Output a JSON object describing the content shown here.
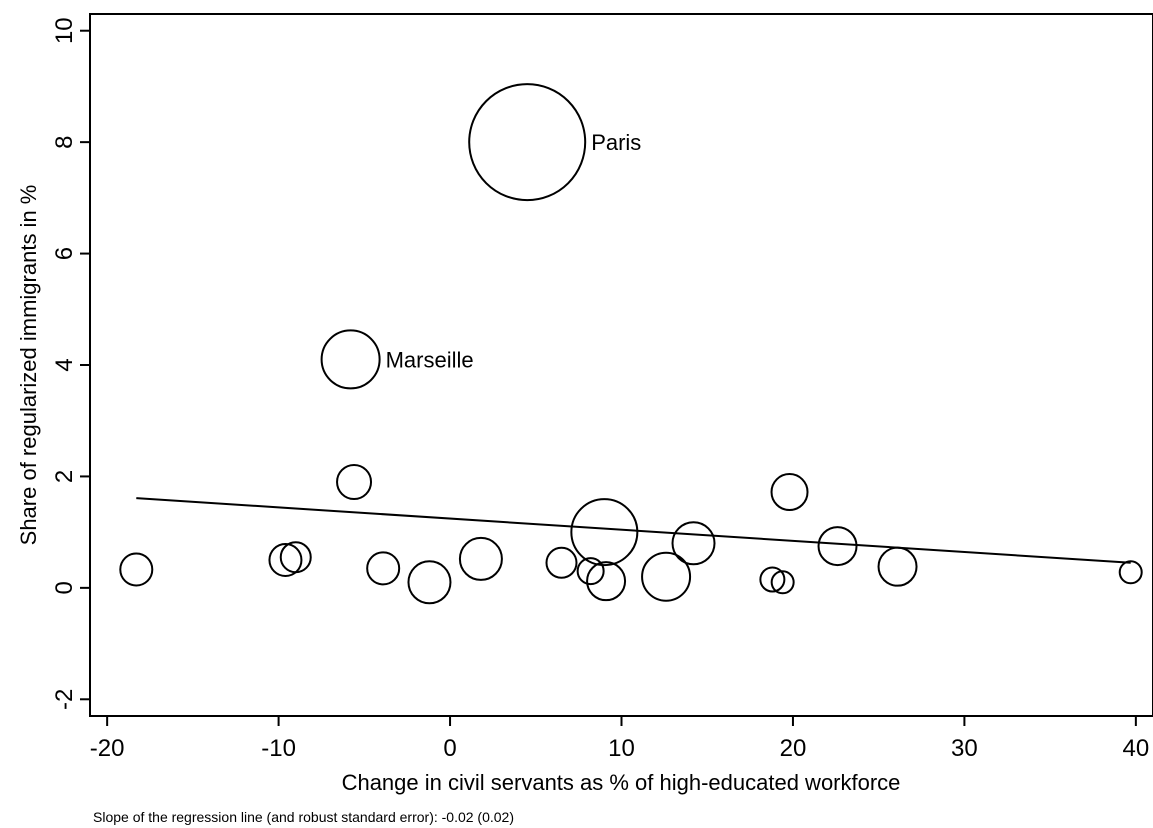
{
  "chart_data": {
    "type": "scatter",
    "title": "",
    "xlabel": "Change in civil servants as % of high-educated workforce",
    "ylabel": "Share of regularized immigrants in %",
    "xlim": [
      -21,
      41
    ],
    "ylim": [
      -2.3,
      10.3
    ],
    "x_ticks": [
      -20,
      -10,
      0,
      10,
      20,
      30,
      40
    ],
    "y_ticks": [
      -2,
      0,
      2,
      4,
      6,
      8,
      10
    ],
    "x_tick_labels": [
      "-20",
      "-10",
      "0",
      "10",
      "20",
      "30",
      "40"
    ],
    "y_tick_labels": [
      "-2",
      "0",
      "2",
      "4",
      "6",
      "8",
      "10"
    ],
    "grid": false,
    "legend": "none",
    "marker": "hollow circle, size proportional to weight",
    "points": [
      {
        "x": 4.5,
        "y": 8.0,
        "r": 58,
        "label": "Paris"
      },
      {
        "x": -5.8,
        "y": 4.1,
        "r": 29,
        "label": "Marseille"
      },
      {
        "x": -18.3,
        "y": 0.33,
        "r": 16,
        "label": ""
      },
      {
        "x": -9.6,
        "y": 0.5,
        "r": 16,
        "label": ""
      },
      {
        "x": -9.0,
        "y": 0.55,
        "r": 15,
        "label": ""
      },
      {
        "x": -5.6,
        "y": 1.9,
        "r": 17,
        "label": ""
      },
      {
        "x": -3.9,
        "y": 0.35,
        "r": 16,
        "label": ""
      },
      {
        "x": -1.2,
        "y": 0.1,
        "r": 21,
        "label": ""
      },
      {
        "x": 1.8,
        "y": 0.52,
        "r": 21,
        "label": ""
      },
      {
        "x": 6.5,
        "y": 0.45,
        "r": 15,
        "label": ""
      },
      {
        "x": 8.2,
        "y": 0.3,
        "r": 13,
        "label": ""
      },
      {
        "x": 9.0,
        "y": 1.0,
        "r": 33,
        "label": ""
      },
      {
        "x": 9.1,
        "y": 0.12,
        "r": 19,
        "label": ""
      },
      {
        "x": 12.6,
        "y": 0.2,
        "r": 24,
        "label": ""
      },
      {
        "x": 14.2,
        "y": 0.8,
        "r": 21,
        "label": ""
      },
      {
        "x": 18.8,
        "y": 0.15,
        "r": 12,
        "label": ""
      },
      {
        "x": 19.4,
        "y": 0.1,
        "r": 11,
        "label": ""
      },
      {
        "x": 19.8,
        "y": 1.72,
        "r": 18,
        "label": ""
      },
      {
        "x": 22.6,
        "y": 0.75,
        "r": 19,
        "label": ""
      },
      {
        "x": 26.1,
        "y": 0.38,
        "r": 19,
        "label": ""
      },
      {
        "x": 39.7,
        "y": 0.28,
        "r": 11,
        "label": ""
      }
    ],
    "regression_line": {
      "x": [
        -18.3,
        39.7
      ],
      "y": [
        1.61,
        0.45
      ]
    },
    "note": "Slope of the regression line (and robust standard error): -0.02 (0.02)"
  }
}
